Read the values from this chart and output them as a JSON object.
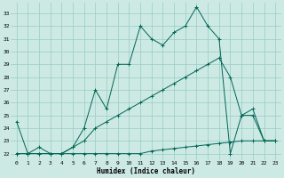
{
  "xlabel": "Humidex (Indice chaleur)",
  "bg_color": "#cce9e4",
  "grid_color": "#99ccc4",
  "line_color": "#006655",
  "xlim": [
    -0.5,
    23.5
  ],
  "ylim": [
    21.5,
    33.8
  ],
  "xticks": [
    0,
    1,
    2,
    3,
    4,
    5,
    6,
    7,
    8,
    9,
    10,
    11,
    12,
    13,
    14,
    15,
    16,
    17,
    18,
    19,
    20,
    21,
    22,
    23
  ],
  "yticks": [
    22,
    23,
    24,
    25,
    26,
    27,
    28,
    29,
    30,
    31,
    32,
    33
  ],
  "line1_x": [
    0,
    1,
    2,
    3,
    4,
    5,
    6,
    7,
    8,
    9,
    10,
    11,
    12,
    13,
    14,
    15,
    16,
    17,
    18,
    19,
    20,
    21,
    22,
    23
  ],
  "line1_y": [
    24.5,
    22.0,
    22.5,
    22.0,
    22.0,
    22.5,
    24.0,
    27.0,
    25.5,
    29.0,
    29.0,
    32.0,
    31.0,
    30.5,
    31.5,
    32.0,
    33.5,
    32.0,
    31.0,
    22.0,
    25.0,
    25.5,
    23.0,
    23.0
  ],
  "line2_x": [
    0,
    1,
    2,
    3,
    4,
    5,
    6,
    7,
    8,
    9,
    10,
    11,
    12,
    13,
    14,
    15,
    16,
    17,
    18,
    19,
    20,
    21,
    22,
    23
  ],
  "line2_y": [
    22.0,
    22.0,
    22.0,
    22.0,
    22.0,
    22.5,
    23.0,
    24.0,
    24.5,
    25.0,
    25.5,
    26.0,
    26.5,
    27.0,
    27.5,
    28.0,
    28.5,
    29.0,
    29.5,
    28.0,
    25.0,
    25.0,
    23.0,
    23.0
  ],
  "line3_x": [
    0,
    1,
    2,
    3,
    4,
    5,
    6,
    7,
    8,
    9,
    10,
    11,
    12,
    13,
    14,
    15,
    16,
    17,
    18,
    19,
    20,
    21,
    22,
    23
  ],
  "line3_y": [
    22.0,
    22.0,
    22.0,
    22.0,
    22.0,
    22.0,
    22.0,
    22.0,
    22.0,
    22.0,
    22.0,
    22.0,
    22.2,
    22.3,
    22.4,
    22.5,
    22.6,
    22.7,
    22.8,
    22.9,
    23.0,
    23.0,
    23.0,
    23.0
  ]
}
